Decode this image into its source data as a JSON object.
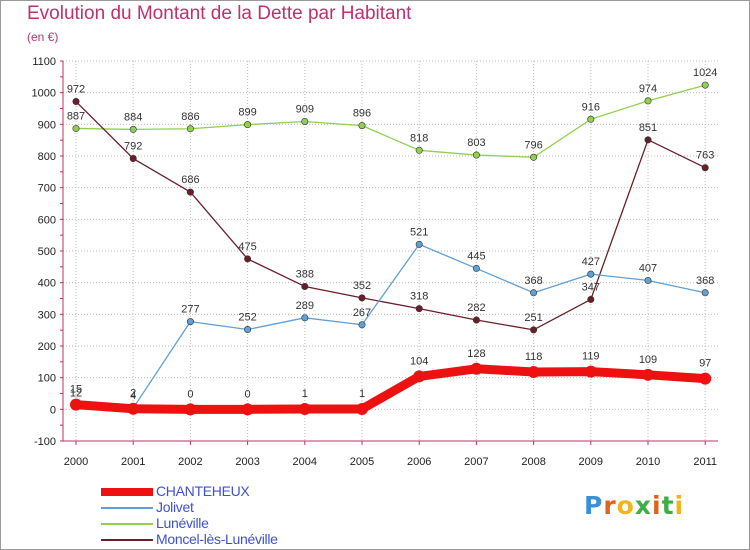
{
  "title": "Evolution du Montant de la Dette par Habitant",
  "subtitle": "(en €)",
  "logo": {
    "text": "Proxiti",
    "letter_colors": [
      "#3b8fd9",
      "#e2621b",
      "#f2b41b",
      "#3fae49",
      "#e2621b",
      "#3fae49",
      "#f2b41b"
    ]
  },
  "chart_data": {
    "type": "line",
    "x": [
      "2000",
      "2001",
      "2002",
      "2003",
      "2004",
      "2005",
      "2006",
      "2007",
      "2008",
      "2009",
      "2010",
      "2011"
    ],
    "ylim": [
      -100,
      1100
    ],
    "yticks": [
      "1100",
      "1000",
      "900",
      "800",
      "700",
      "600",
      "500",
      "400",
      "300",
      "200",
      "100",
      "0",
      "-100"
    ],
    "grid": true,
    "legend_position": "bottom-left",
    "series": [
      {
        "name": "Lunéville",
        "color": "#90d050",
        "values": [
          887,
          884,
          886,
          899,
          909,
          896,
          818,
          803,
          796,
          916,
          974,
          1024
        ],
        "labels": [
          "887",
          "884",
          "886",
          "899",
          "909",
          "896",
          "818",
          "803",
          "796",
          "916",
          "974",
          "1024"
        ],
        "emphasis": false
      },
      {
        "name": "Moncel-lès-Lunéville",
        "color": "#6b1e2a",
        "values": [
          972,
          792,
          686,
          475,
          388,
          352,
          318,
          282,
          251,
          347,
          851,
          763
        ],
        "labels": [
          "972",
          "792",
          "686",
          "475",
          "388",
          "352",
          "318",
          "282",
          "251",
          "347",
          "851",
          "763"
        ],
        "emphasis": false
      },
      {
        "name": "Jolivet",
        "color": "#5fa0d6",
        "values": [
          12,
          4,
          277,
          252,
          289,
          267,
          521,
          445,
          368,
          427,
          407,
          368
        ],
        "labels": [
          "12",
          "4",
          "277",
          "252",
          "289",
          "267",
          "521",
          "445",
          "368",
          "427",
          "407",
          "368"
        ],
        "emphasis": false
      },
      {
        "name": "CHANTEHEUX",
        "color": "#ee1111",
        "values": [
          15,
          2,
          0,
          0,
          1,
          1,
          104,
          128,
          118,
          119,
          109,
          97
        ],
        "labels": [
          "15",
          "2",
          "0",
          "0",
          "1",
          "1",
          "104",
          "128",
          "118",
          "119",
          "109",
          "97"
        ],
        "emphasis": true
      }
    ],
    "legend_order": [
      "CHANTEHEUX",
      "Jolivet",
      "Lunéville",
      "Moncel-lès-Lunéville"
    ]
  }
}
